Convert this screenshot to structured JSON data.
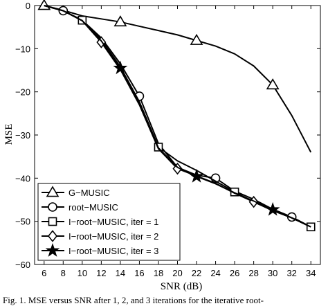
{
  "chart_data": {
    "type": "line",
    "title": "",
    "xlabel": "SNR (dB)",
    "ylabel": "MSE",
    "xlim": [
      5,
      35
    ],
    "ylim": [
      -60,
      0
    ],
    "xticks": [
      6,
      8,
      10,
      12,
      14,
      16,
      18,
      20,
      22,
      24,
      26,
      28,
      30,
      32,
      34
    ],
    "yticks": [
      0,
      -10,
      -20,
      -30,
      -40,
      -50,
      -60
    ],
    "grid": false,
    "legend_position": "bottom-left",
    "series": [
      {
        "name": "G−MUSIC",
        "marker": "triangle",
        "x": [
          6,
          8,
          10,
          12,
          14,
          16,
          18,
          20,
          22,
          24,
          26,
          28,
          30,
          32,
          34
        ],
        "y": [
          0,
          -1.1,
          -2.4,
          -3.1,
          -3.8,
          -4.8,
          -5.8,
          -6.8,
          -8.1,
          -9.4,
          -11.2,
          -14,
          -18.4,
          -25.5,
          -34
        ],
        "marker_x": [
          6,
          14,
          22,
          30
        ],
        "marker_y": [
          0,
          -3.8,
          -8.1,
          -18.4
        ]
      },
      {
        "name": "root−MUSIC",
        "marker": "circle",
        "x": [
          6,
          8,
          10,
          12,
          14,
          16,
          18,
          20,
          22,
          24,
          26,
          28,
          30,
          32,
          34
        ],
        "y": [
          0,
          -1.2,
          -3.4,
          -7.5,
          -13.5,
          -21,
          -32,
          -37.5,
          -39.3,
          -40,
          -43,
          -44.9,
          -47.2,
          -49,
          -51.3
        ],
        "marker_x": [
          8,
          16,
          24,
          32
        ],
        "marker_y": [
          -1.2,
          -21,
          -40,
          -49
        ]
      },
      {
        "name": "I−root−MUSIC, iter = 1",
        "marker": "square",
        "x": [
          6,
          8,
          10,
          12,
          14,
          16,
          18,
          20,
          22,
          24,
          26,
          28,
          30,
          32,
          34
        ],
        "y": [
          0,
          -1.2,
          -3.4,
          -7.9,
          -14.2,
          -22.3,
          -32.8,
          -36,
          -38.2,
          -40.7,
          -43.2,
          -45.5,
          -47.5,
          -49.2,
          -51.3
        ],
        "marker_x": [
          10,
          18,
          26,
          34
        ],
        "marker_y": [
          -3.4,
          -32.8,
          -43.2,
          -51.3
        ]
      },
      {
        "name": "I−root−MUSIC, iter = 2",
        "marker": "diamond",
        "x": [
          6,
          8,
          10,
          12,
          14,
          16,
          18,
          20,
          22,
          24,
          26,
          28,
          30,
          32,
          34
        ],
        "y": [
          0,
          -1.2,
          -3.5,
          -8.5,
          -14.8,
          -23,
          -33.2,
          -37.8,
          -39.5,
          -41.2,
          -43.5,
          -45.5,
          -47.5,
          -49.2,
          -51.3
        ],
        "marker_x": [
          12,
          20,
          28
        ],
        "marker_y": [
          -8.5,
          -37.8,
          -45.5
        ]
      },
      {
        "name": "I−root−MUSIC, iter = 3",
        "marker": "star",
        "x": [
          6,
          8,
          10,
          12,
          14,
          16,
          18,
          20,
          22,
          24,
          26,
          28,
          30,
          32,
          34
        ],
        "y": [
          0,
          -1.2,
          -3.5,
          -8.2,
          -14.5,
          -22.8,
          -33,
          -37.5,
          -39.6,
          -41.3,
          -43.4,
          -45.3,
          -47.3,
          -49.2,
          -51.3
        ],
        "marker_x": [
          14,
          22,
          30
        ],
        "marker_y": [
          -14.5,
          -39.6,
          -47.3
        ]
      }
    ]
  },
  "caption": "Fig. 1.   MSE versus SNR after 1, 2, and 3 iterations for the iterative root-"
}
